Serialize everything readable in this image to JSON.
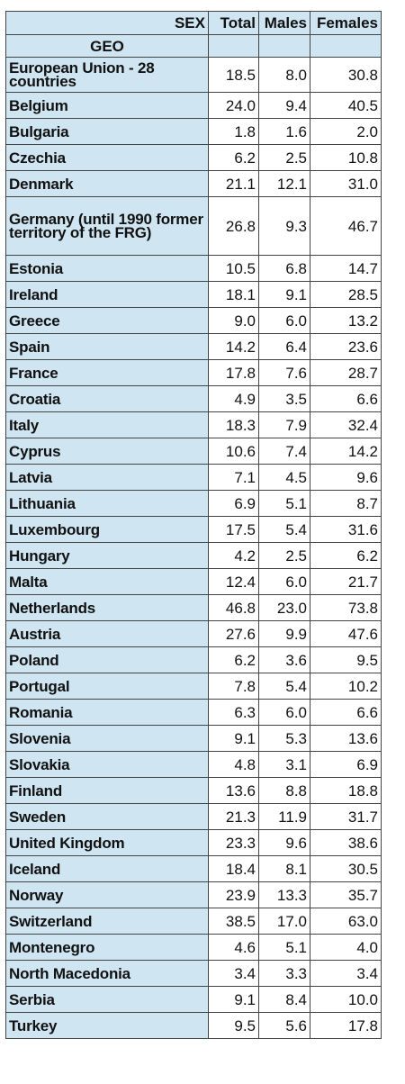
{
  "header": {
    "sex_label": "SEX",
    "geo_label": "GEO",
    "columns": [
      "Total",
      "Males",
      "Females"
    ]
  },
  "rows": [
    {
      "geo": "European Union - 28 countries",
      "total": "18.5",
      "males": "8.0",
      "females": "30.8",
      "lines": 2
    },
    {
      "geo": "Belgium",
      "total": "24.0",
      "males": "9.4",
      "females": "40.5",
      "lines": 1
    },
    {
      "geo": "Bulgaria",
      "total": "1.8",
      "males": "1.6",
      "females": "2.0",
      "lines": 1
    },
    {
      "geo": "Czechia",
      "total": "6.2",
      "males": "2.5",
      "females": "10.8",
      "lines": 1
    },
    {
      "geo": "Denmark",
      "total": "21.1",
      "males": "12.1",
      "females": "31.0",
      "lines": 1
    },
    {
      "geo": "Germany (until 1990 former territory of the FRG)",
      "total": "26.8",
      "males": "9.3",
      "females": "46.7",
      "lines": 3
    },
    {
      "geo": "Estonia",
      "total": "10.5",
      "males": "6.8",
      "females": "14.7",
      "lines": 1
    },
    {
      "geo": "Ireland",
      "total": "18.1",
      "males": "9.1",
      "females": "28.5",
      "lines": 1
    },
    {
      "geo": "Greece",
      "total": "9.0",
      "males": "6.0",
      "females": "13.2",
      "lines": 1
    },
    {
      "geo": "Spain",
      "total": "14.2",
      "males": "6.4",
      "females": "23.6",
      "lines": 1
    },
    {
      "geo": "France",
      "total": "17.8",
      "males": "7.6",
      "females": "28.7",
      "lines": 1
    },
    {
      "geo": "Croatia",
      "total": "4.9",
      "males": "3.5",
      "females": "6.6",
      "lines": 1
    },
    {
      "geo": "Italy",
      "total": "18.3",
      "males": "7.9",
      "females": "32.4",
      "lines": 1
    },
    {
      "geo": "Cyprus",
      "total": "10.6",
      "males": "7.4",
      "females": "14.2",
      "lines": 1
    },
    {
      "geo": "Latvia",
      "total": "7.1",
      "males": "4.5",
      "females": "9.6",
      "lines": 1
    },
    {
      "geo": "Lithuania",
      "total": "6.9",
      "males": "5.1",
      "females": "8.7",
      "lines": 1
    },
    {
      "geo": "Luxembourg",
      "total": "17.5",
      "males": "5.4",
      "females": "31.6",
      "lines": 1
    },
    {
      "geo": "Hungary",
      "total": "4.2",
      "males": "2.5",
      "females": "6.2",
      "lines": 1
    },
    {
      "geo": "Malta",
      "total": "12.4",
      "males": "6.0",
      "females": "21.7",
      "lines": 1
    },
    {
      "geo": "Netherlands",
      "total": "46.8",
      "males": "23.0",
      "females": "73.8",
      "lines": 1
    },
    {
      "geo": "Austria",
      "total": "27.6",
      "males": "9.9",
      "females": "47.6",
      "lines": 1
    },
    {
      "geo": "Poland",
      "total": "6.2",
      "males": "3.6",
      "females": "9.5",
      "lines": 1
    },
    {
      "geo": "Portugal",
      "total": "7.8",
      "males": "5.4",
      "females": "10.2",
      "lines": 1
    },
    {
      "geo": "Romania",
      "total": "6.3",
      "males": "6.0",
      "females": "6.6",
      "lines": 1
    },
    {
      "geo": "Slovenia",
      "total": "9.1",
      "males": "5.3",
      "females": "13.6",
      "lines": 1
    },
    {
      "geo": "Slovakia",
      "total": "4.8",
      "males": "3.1",
      "females": "6.9",
      "lines": 1
    },
    {
      "geo": "Finland",
      "total": "13.6",
      "males": "8.8",
      "females": "18.8",
      "lines": 1
    },
    {
      "geo": "Sweden",
      "total": "21.3",
      "males": "11.9",
      "females": "31.7",
      "lines": 1
    },
    {
      "geo": "United Kingdom",
      "total": "23.3",
      "males": "9.6",
      "females": "38.6",
      "lines": 1
    },
    {
      "geo": "Iceland",
      "total": "18.4",
      "males": "8.1",
      "females": "30.5",
      "lines": 1
    },
    {
      "geo": "Norway",
      "total": "23.9",
      "males": "13.3",
      "females": "35.7",
      "lines": 1
    },
    {
      "geo": "Switzerland",
      "total": "38.5",
      "males": "17.0",
      "females": "63.0",
      "lines": 1
    },
    {
      "geo": "Montenegro",
      "total": "4.6",
      "males": "5.1",
      "females": "4.0",
      "lines": 1
    },
    {
      "geo": "North Macedonia",
      "total": "3.4",
      "males": "3.3",
      "females": "3.4",
      "lines": 1
    },
    {
      "geo": "Serbia",
      "total": "9.1",
      "males": "8.4",
      "females": "10.0",
      "lines": 1
    },
    {
      "geo": "Turkey",
      "total": "9.5",
      "males": "5.6",
      "females": "17.8",
      "lines": 1
    }
  ]
}
